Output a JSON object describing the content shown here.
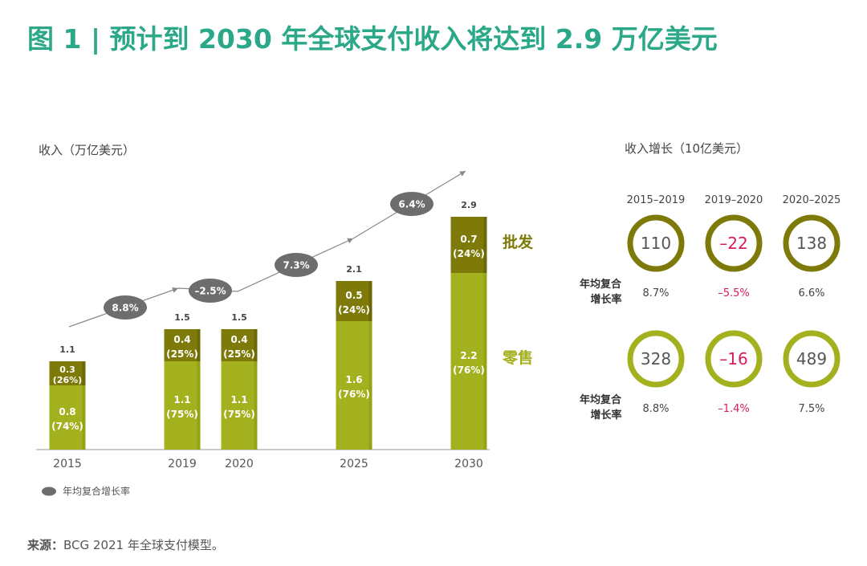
{
  "figure": {
    "title": "图 1 | 预计到 2030 年全球支付收入将达到 2.9 万亿美元",
    "source_label": "来源：",
    "source_text": "BCG 2021 年全球支付模型。"
  },
  "colors": {
    "title": "#2aa887",
    "wholesale": "#7d7a0a",
    "retail": "#a4b11e",
    "bubble": "#6d6d6d",
    "negative": "#d81b60",
    "text": "#333333"
  },
  "chart_data": [
    {
      "type": "bar",
      "stacked": true,
      "title": "收入（万亿美元）",
      "categories": [
        "2015",
        "2019",
        "2020",
        "2025",
        "2030"
      ],
      "series": [
        {
          "name": "零售",
          "values": [
            0.8,
            1.1,
            1.1,
            1.6,
            2.2
          ],
          "share_labels": [
            "(74%)",
            "(75%)",
            "(75%)",
            "(76%)",
            "(76%)"
          ]
        },
        {
          "name": "批发",
          "values": [
            0.3,
            0.4,
            0.4,
            0.5,
            0.7
          ],
          "share_labels": [
            "(26%)",
            "(25%)",
            "(25%)",
            "(24%)",
            "(24%)"
          ]
        }
      ],
      "totals": [
        "1.1",
        "1.5",
        "1.5",
        "2.1",
        "2.9"
      ],
      "segment_labels": [
        [
          "0.8",
          "1.1",
          "1.1",
          "1.6",
          "2.2"
        ],
        [
          "0.3",
          "0.4",
          "0.4",
          "0.5",
          "0.7"
        ]
      ],
      "growth_bubbles": [
        {
          "label": "8.8%",
          "period": "2015–2019"
        },
        {
          "label": "–2.5%",
          "period": "2019–2020"
        },
        {
          "label": "7.3%",
          "period": "2020–2025"
        },
        {
          "label": "6.4%",
          "period": "2025–2030"
        }
      ],
      "legend": {
        "bubble_label": "年均复合增长率"
      },
      "ylim": [
        0,
        3.2
      ]
    },
    {
      "type": "table",
      "title": "收入增长（10亿美元）",
      "columns": [
        "2015–2019",
        "2019–2020",
        "2020–2025"
      ],
      "row_label": "年均复合增长率",
      "row_label_lines": [
        "年均复合",
        "增长率"
      ],
      "groups": [
        {
          "segment": "批发",
          "values": [
            110,
            -22,
            138
          ],
          "value_labels": [
            "110",
            "–22",
            "138"
          ],
          "cagr_labels": [
            "8.7%",
            "–5.5%",
            "6.6%"
          ]
        },
        {
          "segment": "零售",
          "values": [
            328,
            -16,
            489
          ],
          "value_labels": [
            "328",
            "–16",
            "489"
          ],
          "cagr_labels": [
            "8.8%",
            "–1.4%",
            "7.5%"
          ]
        }
      ]
    }
  ]
}
